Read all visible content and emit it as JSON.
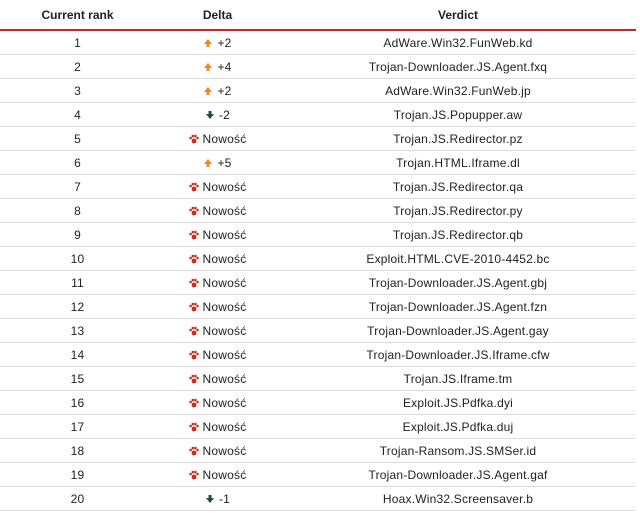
{
  "table": {
    "headers": [
      "Current rank",
      "Delta",
      "Verdict"
    ],
    "rows": [
      [
        "1",
        "+2",
        "AdWare.Win32.FunWeb.kd"
      ],
      [
        "2",
        "+4",
        "Trojan-Downloader.JS.Agent.fxq"
      ],
      [
        "3",
        "+2",
        "AdWare.Win32.FunWeb.jp"
      ],
      [
        "4",
        "-2",
        "Trojan.JS.Popupper.aw"
      ],
      [
        "5",
        "Nowość",
        "Trojan.JS.Redirector.pz"
      ],
      [
        "6",
        "+5",
        "Trojan.HTML.Iframe.dl"
      ],
      [
        "7",
        "Nowość",
        "Trojan.JS.Redirector.qa"
      ],
      [
        "8",
        "Nowość",
        "Trojan.JS.Redirector.py"
      ],
      [
        "9",
        "Nowość",
        "Trojan.JS.Redirector.qb"
      ],
      [
        "10",
        "Nowość",
        "Exploit.HTML.CVE-2010-4452.bc"
      ],
      [
        "11",
        "Nowość",
        "Trojan-Downloader.JS.Agent.gbj"
      ],
      [
        "12",
        "Nowość",
        "Trojan-Downloader.JS.Agent.fzn"
      ],
      [
        "13",
        "Nowość",
        "Trojan-Downloader.JS.Agent.gay"
      ],
      [
        "14",
        "Nowość",
        "Trojan-Downloader.JS.Iframe.cfw"
      ],
      [
        "15",
        "Nowość",
        "Trojan.JS.Iframe.tm"
      ],
      [
        "16",
        "Nowość",
        "Exploit.JS.Pdfka.dyi"
      ],
      [
        "17",
        "Nowość",
        "Exploit.JS.Pdfka.duj"
      ],
      [
        "18",
        "Nowość",
        "Trojan-Ransom.JS.SMSer.id"
      ],
      [
        "19",
        "Nowość",
        "Trojan-Downloader.JS.Agent.gaf"
      ],
      [
        "20",
        "-1",
        "Hoax.Win32.Screensaver.b"
      ]
    ]
  }
}
